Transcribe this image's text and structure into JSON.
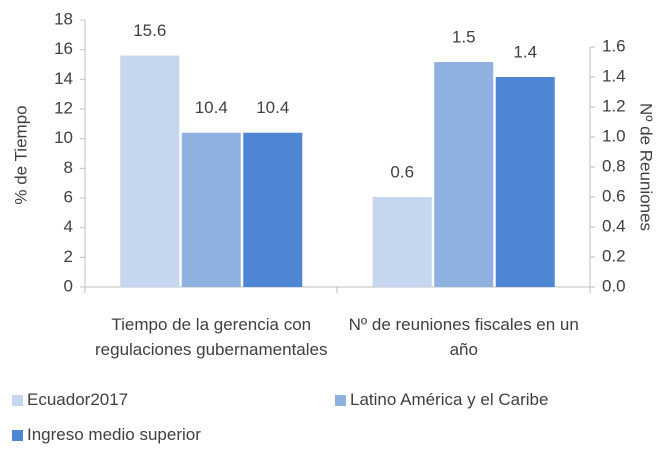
{
  "chart_data": {
    "type": "bar",
    "categories": [
      "Tiempo de la gerencia con regulaciones gubernamentales",
      "Nº de reuniones fiscales en un año"
    ],
    "category_axes": [
      "y",
      "y2"
    ],
    "series": [
      {
        "name": "Ecuador2017",
        "color": "#c5d6ee",
        "values": [
          15.6,
          0.6
        ]
      },
      {
        "name": "Latino América y el Caribe",
        "color": "#8fb1e0",
        "values": [
          10.4,
          1.5
        ]
      },
      {
        "name": "Ingreso medio superior",
        "color": "#4f86d4",
        "values": [
          10.4,
          1.4
        ]
      }
    ],
    "y_label": "% de Tiempo",
    "y2_label": "Nº de Reuniones",
    "ylim": [
      0,
      18
    ],
    "yticks": [
      0,
      2,
      4,
      6,
      8,
      10,
      12,
      14,
      16,
      18
    ],
    "y2lim": [
      0,
      1.78
    ],
    "y2ticks": [
      {
        "value": 0,
        "label": "0.0"
      },
      0.2,
      0.4,
      0.6,
      0.8,
      {
        "value": 1,
        "label": "1.0"
      },
      1.2,
      1.4,
      1.6
    ],
    "grid": false,
    "legend": "bottom"
  }
}
